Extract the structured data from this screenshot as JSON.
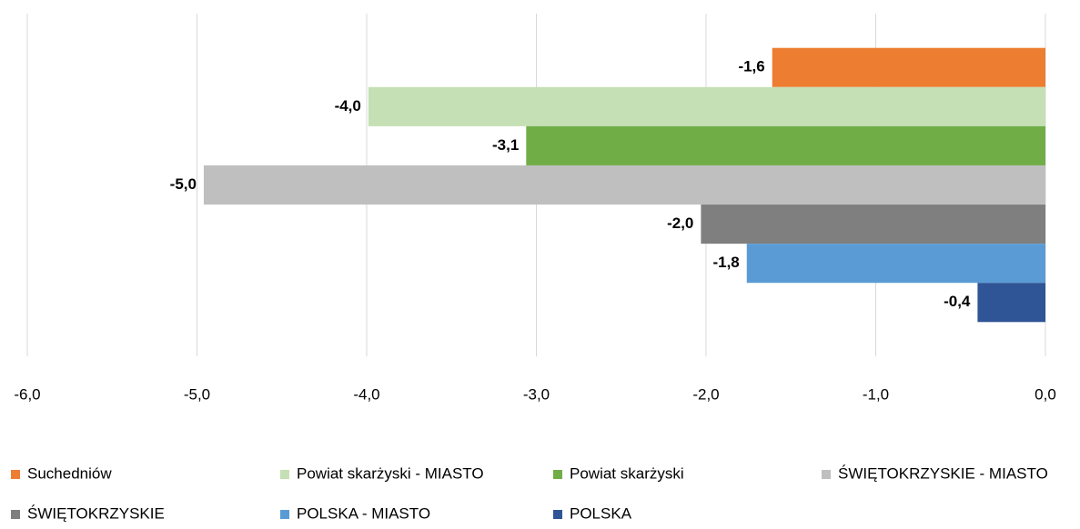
{
  "chart_data": {
    "type": "bar",
    "orientation": "horizontal",
    "categories": [
      null
    ],
    "series": [
      {
        "name": "Suchedniów",
        "color": "#ed7d31",
        "values": [
          -1.61
        ],
        "value_labels": [
          "-1,6"
        ]
      },
      {
        "name": "Powiat skarżyski - MIASTO",
        "color": "#c5e0b4",
        "values": [
          -3.99
        ],
        "value_labels": [
          "-4,0"
        ]
      },
      {
        "name": "Powiat skarżyski",
        "color": "#70ad47",
        "values": [
          -3.06
        ],
        "value_labels": [
          "-3,1"
        ]
      },
      {
        "name": "ŚWIĘTOKRZYSKIE - MIASTO",
        "color": "#bfbfbf",
        "values": [
          -4.96
        ],
        "value_labels": [
          "-5,0"
        ]
      },
      {
        "name": "ŚWIĘTOKRZYSKIE",
        "color": "#7f7f7f",
        "values": [
          -2.03
        ],
        "value_labels": [
          "-2,0"
        ]
      },
      {
        "name": "POLSKA - MIASTO",
        "color": "#5b9bd5",
        "values": [
          -1.76
        ],
        "value_labels": [
          "-1,8"
        ]
      },
      {
        "name": "POLSKA",
        "color": "#2f5597",
        "values": [
          -0.4
        ],
        "value_labels": [
          "-0,4"
        ]
      }
    ],
    "xlim": [
      -6,
      0
    ],
    "xticks": [
      {
        "value": -6,
        "label": "-6,0"
      },
      {
        "value": -5,
        "label": "-5,0"
      },
      {
        "value": -4,
        "label": "-4,0"
      },
      {
        "value": -3,
        "label": "-3,0"
      },
      {
        "value": -2,
        "label": "-2,0"
      },
      {
        "value": -1,
        "label": "-1,0"
      },
      {
        "value": 0,
        "label": "0,0"
      }
    ],
    "grid": true,
    "legend": "bottom"
  }
}
